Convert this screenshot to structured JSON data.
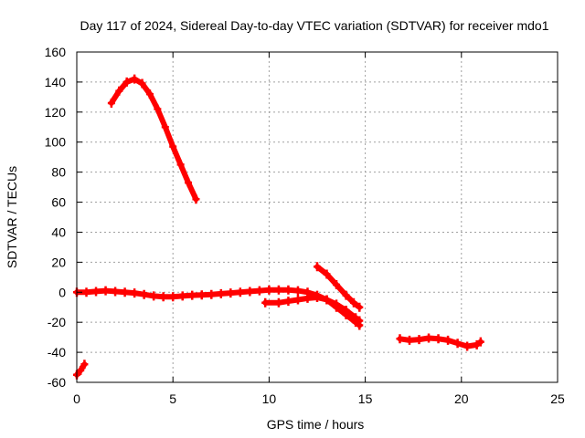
{
  "chart_data": {
    "type": "scatter",
    "title": "Day 117 of 2024, Sidereal Day-to-day VTEC variation (SDTVAR) for receiver mdo1",
    "xlabel": "GPS time / hours",
    "ylabel": "SDTVAR / TECUs",
    "xlim": [
      0,
      25
    ],
    "ylim": [
      -60,
      160
    ],
    "xticks": [
      "0",
      "5",
      "10",
      "15",
      "20",
      "25"
    ],
    "yticks": [
      "-60",
      "-40",
      "-20",
      "0",
      "20",
      "40",
      "60",
      "80",
      "100",
      "120",
      "140",
      "160"
    ],
    "grid": true,
    "series_color": "#ff0000",
    "series": [
      {
        "name": "arc1",
        "points": [
          [
            0.0,
            -55
          ],
          [
            0.2,
            -52
          ],
          [
            0.4,
            -48
          ]
        ]
      },
      {
        "name": "arc2",
        "points": [
          [
            0.0,
            0
          ],
          [
            0.5,
            0
          ],
          [
            1,
            0.5
          ],
          [
            1.5,
            1
          ],
          [
            2,
            0.5
          ],
          [
            2.5,
            0
          ],
          [
            3,
            -0.5
          ],
          [
            3.5,
            -1.5
          ],
          [
            4,
            -2.5
          ],
          [
            4.5,
            -3
          ],
          [
            5,
            -3
          ],
          [
            5.5,
            -2.5
          ],
          [
            6,
            -2
          ],
          [
            6.5,
            -1.8
          ],
          [
            7,
            -1.5
          ],
          [
            7.5,
            -1
          ],
          [
            8,
            -0.5
          ],
          [
            8.5,
            0
          ],
          [
            9,
            0.5
          ],
          [
            9.5,
            1
          ],
          [
            10,
            1.5
          ],
          [
            10.5,
            1.5
          ],
          [
            11,
            1.5
          ],
          [
            11.5,
            1
          ],
          [
            12,
            0
          ],
          [
            12.5,
            -2
          ],
          [
            13,
            -5
          ],
          [
            13.5,
            -10
          ],
          [
            14,
            -15
          ],
          [
            14.5,
            -20
          ],
          [
            14.7,
            -22
          ]
        ]
      },
      {
        "name": "arc3",
        "points": [
          [
            9.8,
            -7
          ],
          [
            10.5,
            -7
          ],
          [
            11,
            -6
          ],
          [
            11.5,
            -5
          ],
          [
            12,
            -4
          ],
          [
            12.5,
            -3.5
          ],
          [
            13,
            -5
          ],
          [
            13.5,
            -8
          ],
          [
            14,
            -12
          ],
          [
            14.5,
            -17
          ],
          [
            14.7,
            -19
          ]
        ]
      },
      {
        "name": "arc4",
        "points": [
          [
            1.8,
            126
          ],
          [
            2.2,
            134
          ],
          [
            2.6,
            140
          ],
          [
            3,
            142
          ],
          [
            3.4,
            139
          ],
          [
            3.8,
            132
          ],
          [
            4.2,
            122
          ],
          [
            4.6,
            110
          ],
          [
            5,
            97
          ],
          [
            5.4,
            85
          ],
          [
            5.8,
            73
          ],
          [
            6.2,
            62
          ]
        ]
      },
      {
        "name": "arc5",
        "points": [
          [
            12.5,
            17
          ],
          [
            13,
            12
          ],
          [
            13.5,
            5
          ],
          [
            14,
            -2
          ],
          [
            14.4,
            -7
          ],
          [
            14.7,
            -10
          ]
        ]
      },
      {
        "name": "arc6",
        "points": [
          [
            16.8,
            -31
          ],
          [
            17.3,
            -32
          ],
          [
            17.8,
            -31.5
          ],
          [
            18.3,
            -30.5
          ],
          [
            18.8,
            -31
          ],
          [
            19.3,
            -32
          ],
          [
            19.8,
            -34
          ],
          [
            20.3,
            -36
          ],
          [
            20.8,
            -35
          ],
          [
            21,
            -33
          ]
        ]
      }
    ]
  }
}
